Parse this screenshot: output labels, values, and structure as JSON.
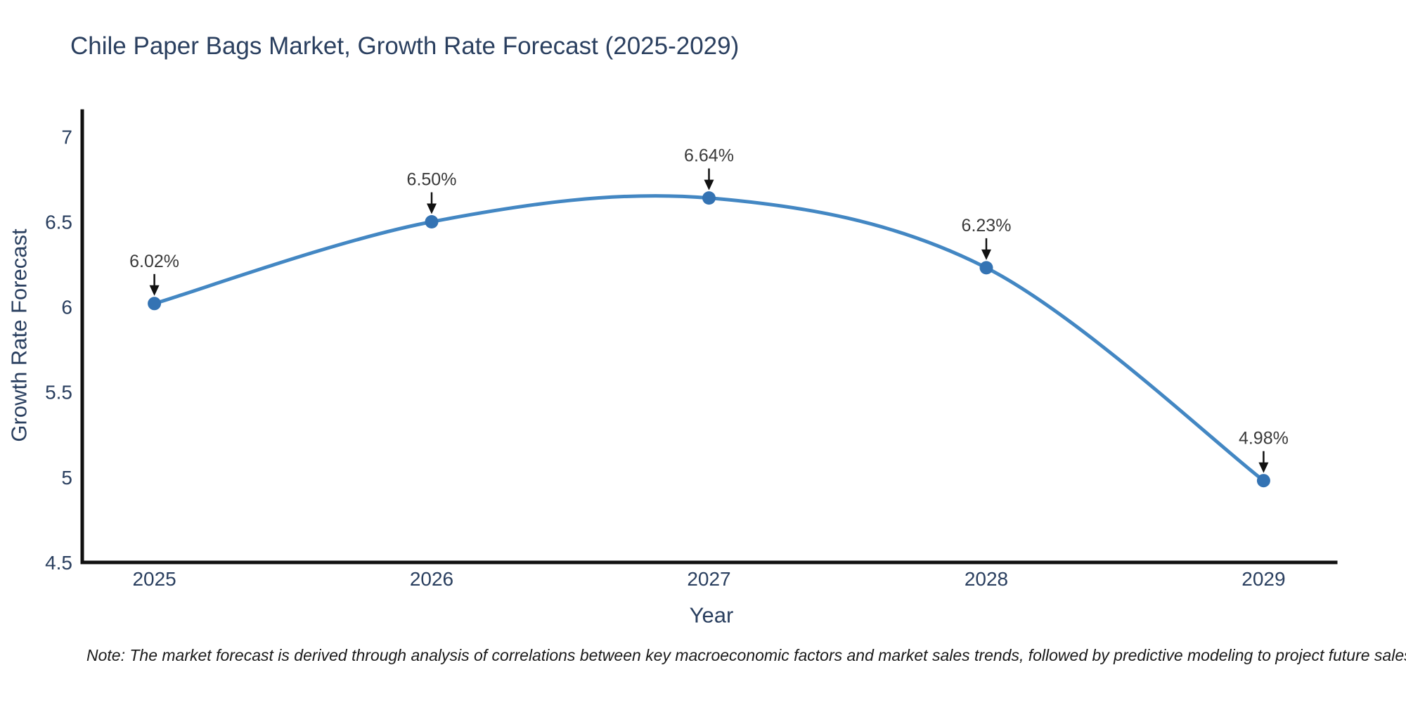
{
  "figure": {
    "note": "Note: The market forecast is derived through analysis of correlations between key macroeconomic factors and market sales trends, followed by predictive modeling to project future sales"
  },
  "chart_data": {
    "type": "line",
    "title": "Chile Paper Bags Market, Growth Rate Forecast (2025-2029)",
    "xlabel": "Year",
    "ylabel": "Growth Rate Forecast",
    "x": [
      2025,
      2026,
      2027,
      2028,
      2029
    ],
    "y": [
      6.02,
      6.5,
      6.64,
      6.23,
      4.98
    ],
    "point_labels": [
      "6.02%",
      "6.50%",
      "6.64%",
      "6.23%",
      "4.98%"
    ],
    "line_shape": "spline",
    "grid": false,
    "legend": false,
    "xlim": [
      2024.74,
      2029.26
    ],
    "ylim": [
      4.5,
      7.15
    ],
    "xticks": [
      2025,
      2026,
      2027,
      2028,
      2029
    ],
    "xtick_labels": [
      "2025",
      "2026",
      "2027",
      "2028",
      "2029"
    ],
    "yticks": [
      4.5,
      5,
      5.5,
      6,
      6.5,
      7
    ],
    "ytick_labels": [
      "4.5",
      "5",
      "5.5",
      "6",
      "6.5",
      "7"
    ],
    "colors": {
      "line": "#4387c3",
      "marker": "#3473b3",
      "axis": "#111111",
      "tick_labels": "#2a3f5f",
      "title_text": "#2a3f5f",
      "axis_title_text": "#2a3f5f",
      "annotation_text": "#3a3a3a",
      "note_text": "#1a1a1a",
      "background": "#ffffff"
    }
  }
}
